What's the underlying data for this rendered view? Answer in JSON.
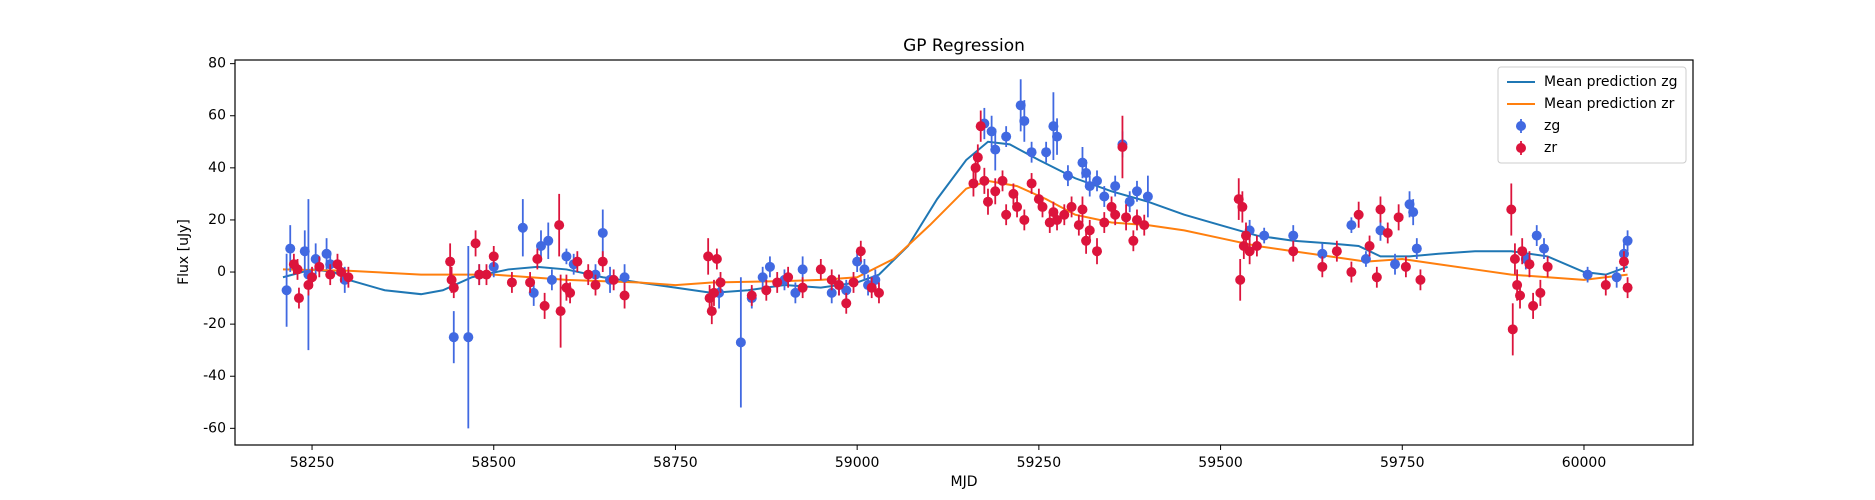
{
  "chart_data": {
    "type": "errorbar",
    "title": "GP Regression",
    "xlabel": "MJD",
    "ylabel": "Flux [uJy]",
    "xlim": [
      58144,
      60150
    ],
    "ylim": [
      -66.4,
      81.4
    ],
    "xticks": [
      58250,
      58500,
      58750,
      59000,
      59250,
      59500,
      59750,
      60000
    ],
    "yticks": [
      -60,
      -40,
      -20,
      0,
      20,
      40,
      60,
      80
    ],
    "legend": "upper right",
    "series": [
      {
        "name": "Mean prediction zg",
        "type": "line",
        "color": "#1f77b4",
        "x": [
          58210,
          58250,
          58280,
          58300,
          58350,
          58400,
          58430,
          58470,
          58520,
          58560,
          58600,
          58650,
          58700,
          58750,
          58800,
          58850,
          58900,
          58950,
          59000,
          59030,
          59070,
          59110,
          59150,
          59180,
          59210,
          59250,
          59300,
          59350,
          59400,
          59450,
          59500,
          59550,
          59600,
          59650,
          59690,
          59720,
          59760,
          59800,
          59850,
          59900,
          59950,
          60000,
          60030,
          60060
        ],
        "values": [
          -2,
          1,
          0,
          -3,
          -7,
          -8.5,
          -7,
          -2,
          1,
          2,
          1,
          -2,
          -4,
          -6,
          -8,
          -7,
          -5,
          -6,
          -4,
          -1,
          10,
          28,
          43,
          50,
          49,
          43,
          36,
          31,
          27,
          22,
          18,
          14,
          12,
          11,
          10,
          6,
          6,
          7,
          8,
          8,
          6,
          0,
          -1,
          2
        ]
      },
      {
        "name": "Mean prediction zr",
        "type": "line",
        "color": "#ff7f0e",
        "x": [
          58210,
          58300,
          58400,
          58500,
          58600,
          58700,
          58750,
          58800,
          58900,
          58950,
          59000,
          59050,
          59100,
          59150,
          59180,
          59220,
          59260,
          59300,
          59350,
          59400,
          59450,
          59500,
          59550,
          59600,
          59650,
          59700,
          59750,
          59800,
          59850,
          59900,
          59950,
          60000,
          60060
        ],
        "values": [
          1,
          0.5,
          -1,
          -1,
          -3,
          -4,
          -5,
          -4,
          -3.5,
          -3,
          -2,
          5,
          18,
          32,
          35,
          33,
          28,
          22,
          19,
          18,
          16,
          13,
          10,
          8,
          6,
          4,
          5,
          3,
          1,
          -1,
          -2,
          -3,
          -1
        ]
      },
      {
        "name": "zg",
        "type": "errorbar",
        "color": "#4169e1",
        "x": [
          58215,
          58220,
          58240,
          58245,
          58255,
          58270,
          58275,
          58295,
          58445,
          58465,
          58480,
          58500,
          58540,
          58555,
          58565,
          58575,
          58580,
          58600,
          58610,
          58640,
          58650,
          58660,
          58680,
          58810,
          58840,
          58855,
          58870,
          58880,
          58900,
          58915,
          58925,
          58965,
          58975,
          58985,
          59000,
          59010,
          59015,
          59025,
          59175,
          59185,
          59190,
          59205,
          59225,
          59230,
          59240,
          59260,
          59270,
          59275,
          59290,
          59310,
          59315,
          59320,
          59330,
          59340,
          59355,
          59365,
          59375,
          59385,
          59400,
          59540,
          59560,
          59600,
          59640,
          59680,
          59700,
          59720,
          59740,
          59760,
          59765,
          59770,
          59920,
          59935,
          59945,
          60005,
          60045,
          60055,
          60060
        ],
        "values": [
          -7,
          9,
          8,
          -1,
          5,
          7,
          3,
          -3,
          -25,
          -25,
          -1,
          2,
          17,
          -8,
          10,
          12,
          -3,
          6,
          3,
          -1,
          15,
          -3,
          -2,
          -8,
          -27,
          -10,
          -2,
          2,
          -3,
          -8,
          1,
          -8,
          -5,
          -7,
          4,
          1,
          -5,
          -3,
          57,
          54,
          47,
          52,
          64,
          58,
          46,
          46,
          56,
          52,
          37,
          42,
          38,
          33,
          35,
          29,
          33,
          49,
          27,
          31,
          29,
          16,
          14,
          14,
          7,
          18,
          5,
          16,
          3,
          26,
          23,
          9,
          5,
          14,
          9,
          -1,
          -2,
          7,
          12
        ],
        "errors": [
          14,
          9,
          8,
          29,
          6,
          6,
          5,
          5,
          10,
          35,
          4,
          4,
          11,
          5,
          6,
          7,
          4,
          3,
          4,
          4,
          9,
          5,
          5,
          6,
          25,
          4,
          4,
          4,
          4,
          4,
          5,
          4,
          4,
          4,
          4,
          4,
          4,
          4,
          6,
          6,
          8,
          4,
          10,
          8,
          4,
          4,
          13,
          7,
          4,
          6,
          5,
          4,
          4,
          4,
          4,
          5,
          4,
          4,
          8,
          4,
          3,
          4,
          4,
          3,
          3,
          4,
          4,
          5,
          5,
          4,
          4,
          4,
          4,
          3,
          4,
          4,
          4
        ]
      },
      {
        "name": "zr",
        "type": "errorbar",
        "color": "#dc143c",
        "x": [
          58225,
          58230,
          58232,
          58245,
          58250,
          58260,
          58275,
          58285,
          58290,
          58300,
          58440,
          58442,
          58445,
          58475,
          58480,
          58490,
          58500,
          58525,
          58550,
          58560,
          58570,
          58590,
          58592,
          58600,
          58605,
          58615,
          58630,
          58640,
          58650,
          58665,
          58680,
          58795,
          58797,
          58800,
          58803,
          58807,
          58812,
          58855,
          58875,
          58890,
          58905,
          58925,
          58950,
          58965,
          58975,
          58985,
          58995,
          59005,
          59020,
          59030,
          59160,
          59163,
          59166,
          59170,
          59175,
          59180,
          59190,
          59200,
          59205,
          59215,
          59220,
          59230,
          59240,
          59250,
          59255,
          59265,
          59270,
          59275,
          59285,
          59295,
          59305,
          59310,
          59315,
          59320,
          59330,
          59340,
          59350,
          59355,
          59365,
          59370,
          59380,
          59385,
          59395,
          59525,
          59527,
          59530,
          59532,
          59535,
          59540,
          59550,
          59600,
          59640,
          59660,
          59680,
          59690,
          59705,
          59715,
          59720,
          59730,
          59745,
          59755,
          59775,
          59900,
          59902,
          59905,
          59908,
          59912,
          59915,
          59925,
          59930,
          59940,
          59950,
          60030,
          60055,
          60060
        ],
        "values": [
          3,
          1,
          -10,
          -5,
          -2,
          2,
          -1,
          3,
          0,
          -2,
          4,
          -3,
          -6,
          11,
          -1,
          -1,
          6,
          -4,
          -4,
          5,
          -13,
          18,
          -15,
          -6,
          -8,
          4,
          -1,
          -5,
          4,
          -3,
          -9,
          6,
          -10,
          -15,
          -8,
          5,
          -4,
          -9,
          -7,
          -4,
          -2,
          -6,
          1,
          -3,
          -5,
          -12,
          -4,
          8,
          -6,
          -8,
          34,
          40,
          44,
          56,
          35,
          27,
          31,
          35,
          22,
          30,
          25,
          20,
          34,
          28,
          25,
          19,
          23,
          20,
          22,
          25,
          18,
          24,
          12,
          16,
          8,
          19,
          25,
          22,
          48,
          21,
          12,
          20,
          18,
          28,
          -3,
          25,
          10,
          14,
          8,
          10,
          8,
          2,
          8,
          0,
          22,
          10,
          -2,
          24,
          15,
          21,
          2,
          -3,
          24,
          -22,
          5,
          -5,
          -9,
          8,
          3,
          -13,
          -8,
          2,
          -5,
          4,
          -6
        ],
        "errors": [
          4,
          4,
          4,
          4,
          4,
          4,
          4,
          4,
          4,
          4,
          7,
          5,
          4,
          5,
          4,
          4,
          4,
          4,
          4,
          4,
          5,
          12,
          14,
          5,
          4,
          4,
          4,
          4,
          4,
          4,
          5,
          7,
          5,
          5,
          5,
          4,
          4,
          4,
          4,
          4,
          4,
          4,
          4,
          4,
          4,
          4,
          4,
          4,
          4,
          4,
          5,
          5,
          5,
          6,
          5,
          5,
          5,
          4,
          4,
          4,
          4,
          4,
          4,
          4,
          4,
          4,
          4,
          4,
          4,
          4,
          4,
          5,
          5,
          4,
          5,
          4,
          4,
          4,
          12,
          5,
          4,
          4,
          4,
          8,
          8,
          6,
          5,
          5,
          5,
          4,
          4,
          4,
          4,
          4,
          5,
          4,
          4,
          5,
          4,
          5,
          4,
          4,
          10,
          10,
          6,
          6,
          5,
          5,
          5,
          5,
          5,
          4,
          4,
          4,
          4
        ]
      }
    ]
  }
}
